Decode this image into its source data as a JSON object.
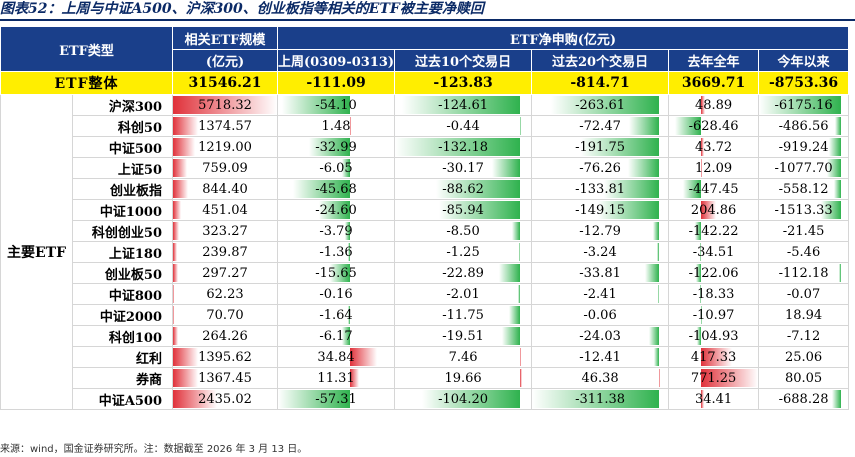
{
  "title": "图表52：上周与中证A500、沪深300、创业板指等相关的ETF被主要净赎回",
  "header": {
    "type_label": "ETF类型",
    "scale_label": "相关ETF规模",
    "scale_unit": "(亿元)",
    "net_label": "ETF净申购(亿元)",
    "cols": [
      "上周(0309-0313)",
      "过去10个交易日",
      "过去20个交易日",
      "去年全年",
      "今年以来"
    ]
  },
  "total": {
    "label": "ETF整体",
    "values": [
      "31546.21",
      "-111.09",
      "-123.83",
      "-814.71",
      "3669.71",
      "-8753.36"
    ]
  },
  "group_label": "主要ETF",
  "rows": [
    {
      "name": "沪深300",
      "values": [
        "5718.32",
        "-54.10",
        "-124.61",
        "-263.61",
        "48.89",
        "-6175.16"
      ]
    },
    {
      "name": "科创50",
      "values": [
        "1374.57",
        "1.48",
        "-0.44",
        "-72.47",
        "-628.46",
        "-486.56"
      ]
    },
    {
      "name": "中证500",
      "values": [
        "1219.00",
        "-32.99",
        "-132.18",
        "-191.75",
        "43.72",
        "-919.24"
      ]
    },
    {
      "name": "上证50",
      "values": [
        "759.09",
        "-6.05",
        "-30.17",
        "-76.26",
        "12.09",
        "-1077.70"
      ]
    },
    {
      "name": "创业板指",
      "values": [
        "844.40",
        "-45.68",
        "-88.62",
        "-133.81",
        "-447.45",
        "-558.12"
      ]
    },
    {
      "name": "中证1000",
      "values": [
        "451.04",
        "-24.60",
        "-85.94",
        "-149.15",
        "204.86",
        "-1513.33"
      ]
    },
    {
      "name": "科创创业50",
      "values": [
        "323.27",
        "-3.79",
        "-8.50",
        "-12.79",
        "-142.22",
        "-21.45"
      ]
    },
    {
      "name": "上证180",
      "values": [
        "239.87",
        "-1.36",
        "-1.25",
        "-3.24",
        "-34.51",
        "-5.46"
      ]
    },
    {
      "name": "创业板50",
      "values": [
        "297.27",
        "-15.65",
        "-22.89",
        "-33.81",
        "-122.06",
        "-112.18"
      ]
    },
    {
      "name": "中证800",
      "values": [
        "62.23",
        "-0.16",
        "-2.01",
        "-2.41",
        "-18.33",
        "-0.07"
      ]
    },
    {
      "name": "中证2000",
      "values": [
        "70.70",
        "-1.64",
        "-11.75",
        "-0.06",
        "-10.97",
        "18.94"
      ]
    },
    {
      "name": "科创100",
      "values": [
        "264.26",
        "-6.17",
        "-19.51",
        "-24.03",
        "-104.93",
        "-7.12"
      ]
    },
    {
      "name": "红利",
      "values": [
        "1395.62",
        "34.84",
        "7.46",
        "-12.41",
        "417.33",
        "25.06"
      ]
    },
    {
      "name": "券商",
      "values": [
        "1367.45",
        "11.31",
        "19.66",
        "46.38",
        "771.25",
        "80.05"
      ]
    },
    {
      "name": "中证A500",
      "values": [
        "2435.02",
        "-57.31",
        "-104.20",
        "-311.38",
        "34.41",
        "-688.28"
      ]
    }
  ],
  "colors": {
    "positive": "#e0313a",
    "negative": "#2fb24e",
    "header": "#1a3f8a",
    "total": "#ffee00"
  },
  "source": "来源：wind，国金证券研究所。注：数据截至 2026 年 3 月 13 日。"
}
